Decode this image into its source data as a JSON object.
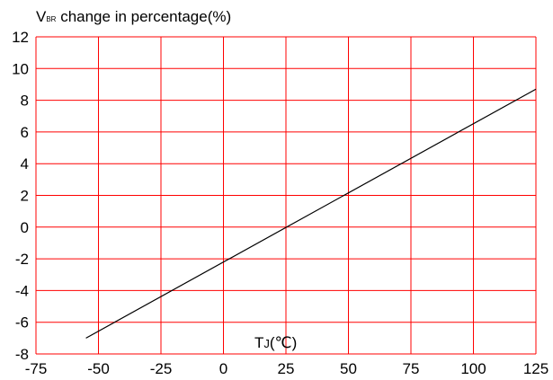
{
  "chart_data": {
    "type": "line",
    "title_main": "V",
    "title_sub": "BR",
    "title_rest": " change in percentage(%)",
    "xlabel_main": "T",
    "xlabel_sub": "J",
    "xlabel_rest": "(℃)",
    "xlim": [
      -75,
      125
    ],
    "ylim": [
      -8,
      12
    ],
    "xticks": [
      -75,
      -50,
      -25,
      0,
      25,
      50,
      75,
      100,
      125
    ],
    "yticks": [
      -8,
      -6,
      -4,
      -2,
      0,
      2,
      4,
      6,
      8,
      10,
      12
    ],
    "grid": true,
    "colors": {
      "grid": "#ff0000",
      "line": "#000000"
    },
    "series": [
      {
        "x": [
          -55,
          125
        ],
        "y": [
          -7.0,
          8.7
        ]
      }
    ]
  }
}
